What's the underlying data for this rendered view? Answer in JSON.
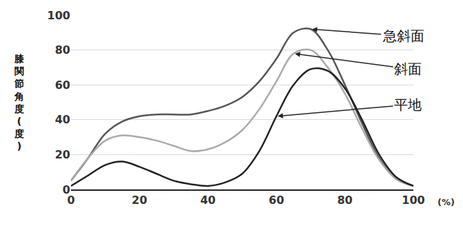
{
  "chart_data": {
    "type": "line",
    "x_label": "(%)",
    "y_label": "膝関節角度(度)",
    "x": [
      0,
      5,
      10,
      15,
      20,
      25,
      30,
      35,
      40,
      45,
      50,
      55,
      60,
      65,
      70,
      75,
      80,
      85,
      90,
      95,
      100
    ],
    "series": [
      {
        "name": "急斜面",
        "color": "#555555",
        "values": [
          5,
          18,
          32,
          39,
          42,
          43,
          43,
          43,
          45,
          48,
          53,
          62,
          75,
          90,
          92,
          80,
          60,
          38,
          18,
          6,
          2
        ]
      },
      {
        "name": "斜面",
        "color": "#aaaaaa",
        "values": [
          5,
          18,
          28,
          31,
          30,
          28,
          25,
          22,
          23,
          27,
          34,
          46,
          62,
          78,
          80,
          70,
          55,
          35,
          17,
          6,
          2
        ]
      },
      {
        "name": "平地",
        "color": "#222222",
        "values": [
          2,
          8,
          14,
          16,
          13,
          9,
          5,
          3,
          2,
          4,
          9,
          22,
          42,
          60,
          69,
          68,
          58,
          40,
          20,
          7,
          2
        ]
      }
    ],
    "xlim": [
      0,
      100
    ],
    "xticks": [
      0,
      20,
      40,
      60,
      80,
      100
    ],
    "ylim": [
      0,
      100
    ],
    "yticks": [
      0,
      20,
      40,
      60,
      80,
      100
    ],
    "grid": true
  }
}
